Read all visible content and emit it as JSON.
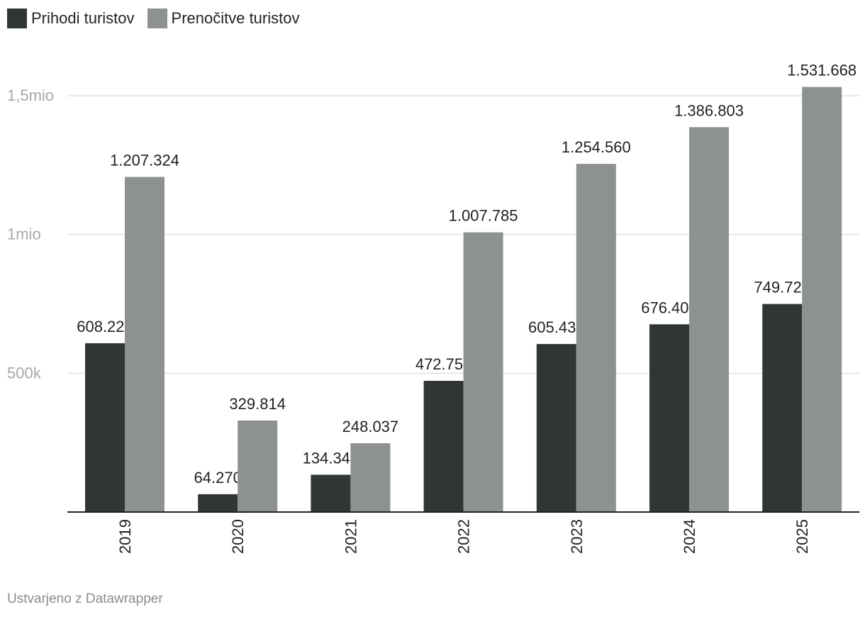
{
  "chart_data": {
    "type": "bar",
    "title": "",
    "xlabel": "",
    "ylabel": "",
    "categories": [
      "2019",
      "2020",
      "2021",
      "2022",
      "2023",
      "2024",
      "2025"
    ],
    "series": [
      {
        "name": "Prihodi turistov",
        "color": "#303636",
        "values": [
          608229,
          64270,
          134342,
          472751,
          605437,
          676409,
          749729
        ],
        "labels": [
          "608.229",
          "64.270",
          "134.342",
          "472.751",
          "605.437",
          "676.409",
          "749.729"
        ]
      },
      {
        "name": "Prenočitve turistov",
        "color": "#8d9291",
        "values": [
          1207324,
          329814,
          248037,
          1007785,
          1254560,
          1386803,
          1531668
        ],
        "labels": [
          "1.207.324",
          "329.814",
          "248.037",
          "1.007.785",
          "1.254.560",
          "1.386.803",
          "1.531.668"
        ]
      }
    ],
    "yticks": [
      {
        "value": 500000,
        "label": "500k"
      },
      {
        "value": 1000000,
        "label": "1mio"
      },
      {
        "value": 1500000,
        "label": "1,5mio"
      }
    ],
    "ylim": [
      0,
      1500000
    ],
    "grid": true,
    "legend": "top-left"
  },
  "footer": {
    "credit": "Ustvarjeno z Datawrapper"
  }
}
